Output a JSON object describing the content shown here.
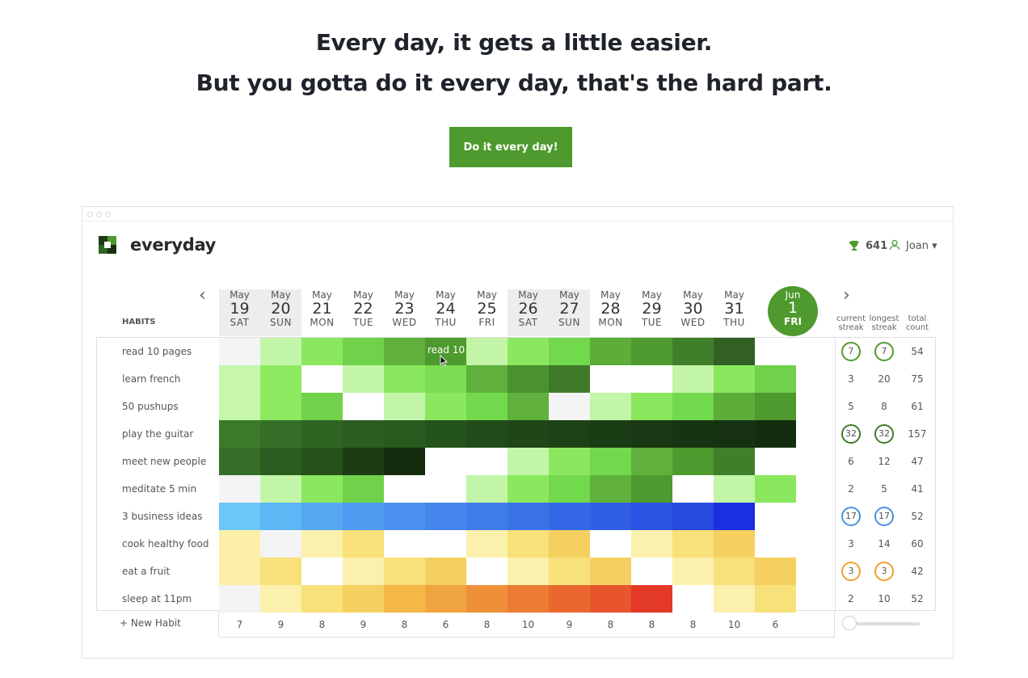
{
  "hero": {
    "line1": "Every day, it gets a little easier.",
    "line2": "But you gotta do it every day, that's the hard part.",
    "cta": "Do it every day!"
  },
  "app": {
    "name": "everyday",
    "score": "641",
    "user": "Joan ▾",
    "prev_icon": "chevron-left-icon",
    "next_icon": "chevron-right-icon"
  },
  "headers": {
    "habits": "HABITS",
    "current_streak": "current streak",
    "longest_streak": "longest streak",
    "total_count": "total count"
  },
  "days": [
    {
      "m": "May",
      "d": "19",
      "w": "SAT",
      "weekend": true
    },
    {
      "m": "May",
      "d": "20",
      "w": "SUN",
      "weekend": true
    },
    {
      "m": "May",
      "d": "21",
      "w": "MON",
      "weekend": false
    },
    {
      "m": "May",
      "d": "22",
      "w": "TUE",
      "weekend": false
    },
    {
      "m": "May",
      "d": "23",
      "w": "WED",
      "weekend": false
    },
    {
      "m": "May",
      "d": "24",
      "w": "THU",
      "weekend": false
    },
    {
      "m": "May",
      "d": "25",
      "w": "FRI",
      "weekend": false
    },
    {
      "m": "May",
      "d": "26",
      "w": "SAT",
      "weekend": true
    },
    {
      "m": "May",
      "d": "27",
      "w": "SUN",
      "weekend": true
    },
    {
      "m": "May",
      "d": "28",
      "w": "MON",
      "weekend": false
    },
    {
      "m": "May",
      "d": "29",
      "w": "TUE",
      "weekend": false
    },
    {
      "m": "May",
      "d": "30",
      "w": "WED",
      "weekend": false
    },
    {
      "m": "May",
      "d": "31",
      "w": "THU",
      "weekend": false
    }
  ],
  "today": {
    "m": "Jun",
    "d": "1",
    "w": "FRI"
  },
  "habits": [
    {
      "name": "read 10 pages",
      "current": "7",
      "longest": "7",
      "total": "54",
      "ring": "#4e9a2e",
      "cells": [
        "#f4f4f4",
        "#c2f5a8",
        "#8be85e",
        "#6fd24a",
        "#5fb03c",
        "#4e9a2e",
        "#c2f5a8",
        "#8be85e",
        "#72d84c",
        "#5cad3a",
        "#4e9a2e",
        "#3f7f2a",
        "#325f22",
        null
      ]
    },
    {
      "name": "learn french",
      "current": "3",
      "longest": "20",
      "total": "75",
      "ring": null,
      "cells": [
        "#c6f7ac",
        "#8de960",
        "#ffffff",
        "#c2f5a8",
        "#8be85e",
        "#7bdd52",
        "#5fb03c",
        "#4a922d",
        "#3f7a28",
        "#ffffff",
        "#ffffff",
        "#c2f5a8",
        "#8be85e",
        "#6fd24a"
      ]
    },
    {
      "name": "50 pushups",
      "current": "5",
      "longest": "8",
      "total": "61",
      "ring": null,
      "cells": [
        "#c6f7ac",
        "#8de960",
        "#6fd24a",
        "#ffffff",
        "#c2f5a8",
        "#8be85e",
        "#72d84c",
        "#5fb03c",
        "#f4f4f4",
        "#c2f5a8",
        "#8be85e",
        "#72d84c",
        "#5cad3a",
        "#4e9a2e"
      ]
    },
    {
      "name": "play the guitar",
      "current": "32",
      "longest": "32",
      "total": "157",
      "ring": "#3b7d28",
      "cells": [
        "#3a7a2a",
        "#356f27",
        "#2f6523",
        "#2b5d20",
        "#285a1e",
        "#24521b",
        "#214b19",
        "#1f4617",
        "#1d4116",
        "#1b3d15",
        "#193814",
        "#173412",
        "#163111",
        "#142d10"
      ]
    },
    {
      "name": "meet new people",
      "current": "6",
      "longest": "12",
      "total": "47",
      "ring": null,
      "cells": [
        "#356f27",
        "#2b5d20",
        "#24501a",
        "#1c3d14",
        "#142b0e",
        "#ffffff",
        "#ffffff",
        "#c2f5a8",
        "#8be85e",
        "#72d84c",
        "#5fb03c",
        "#4e9a2e",
        "#3f7f2a",
        null
      ]
    },
    {
      "name": "meditate 5 min",
      "current": "2",
      "longest": "5",
      "total": "41",
      "ring": null,
      "cells": [
        "#f4f4f4",
        "#c2f5a8",
        "#8be85e",
        "#6fd24a",
        "#ffffff",
        "#ffffff",
        "#c2f5a8",
        "#8be85e",
        "#72d84c",
        "#5fb03c",
        "#4e9a2e",
        "#ffffff",
        "#c2f5a8",
        "#8be85e"
      ]
    },
    {
      "name": "3 business ideas",
      "current": "17",
      "longest": "17",
      "total": "52",
      "ring": "#4a90e2",
      "cells": [
        "#6cc6f7",
        "#5fb6f5",
        "#56a8f3",
        "#4e9bf1",
        "#4990ef",
        "#4486ec",
        "#3f7cea",
        "#3a72e8",
        "#3568e6",
        "#305ee4",
        "#2c54e2",
        "#2749e0",
        "#1a2fe0",
        null
      ]
    },
    {
      "name": "cook healthy food",
      "current": "3",
      "longest": "14",
      "total": "60",
      "ring": null,
      "cells": [
        "#fcf0a8",
        "#f4f4f4",
        "#fbf1ac",
        "#f8e07a",
        "#ffffff",
        "#ffffff",
        "#fbf1ac",
        "#f8e07a",
        "#f5d060",
        "#ffffff",
        "#fbf1ac",
        "#f8e07a",
        "#f5d060",
        null
      ]
    },
    {
      "name": "eat a fruit",
      "current": "3",
      "longest": "3",
      "total": "42",
      "ring": "#f0a030",
      "cells": [
        "#fcf0a8",
        "#f8e07a",
        "#ffffff",
        "#fbf1ac",
        "#f8e07a",
        "#f5d060",
        "#ffffff",
        "#fbf1ac",
        "#f8e07a",
        "#f5d060",
        "#ffffff",
        "#fbf1ac",
        "#f8e07a",
        "#f5d060"
      ]
    },
    {
      "name": "sleep at 11pm",
      "current": "2",
      "longest": "10",
      "total": "52",
      "ring": null,
      "cells": [
        "#f4f4f4",
        "#fbf1ac",
        "#f8e07a",
        "#f5d060",
        "#f3b845",
        "#f0a440",
        "#ee9038",
        "#ec7c33",
        "#ea682f",
        "#e8542b",
        "#e33a27",
        "#ffffff",
        "#fbf1ac",
        "#f8e07a"
      ]
    }
  ],
  "hover_label": "read 10",
  "new_habit": "+ New Habit",
  "totals": [
    "7",
    "9",
    "8",
    "9",
    "8",
    "6",
    "8",
    "10",
    "9",
    "8",
    "8",
    "8",
    "10",
    "6"
  ]
}
